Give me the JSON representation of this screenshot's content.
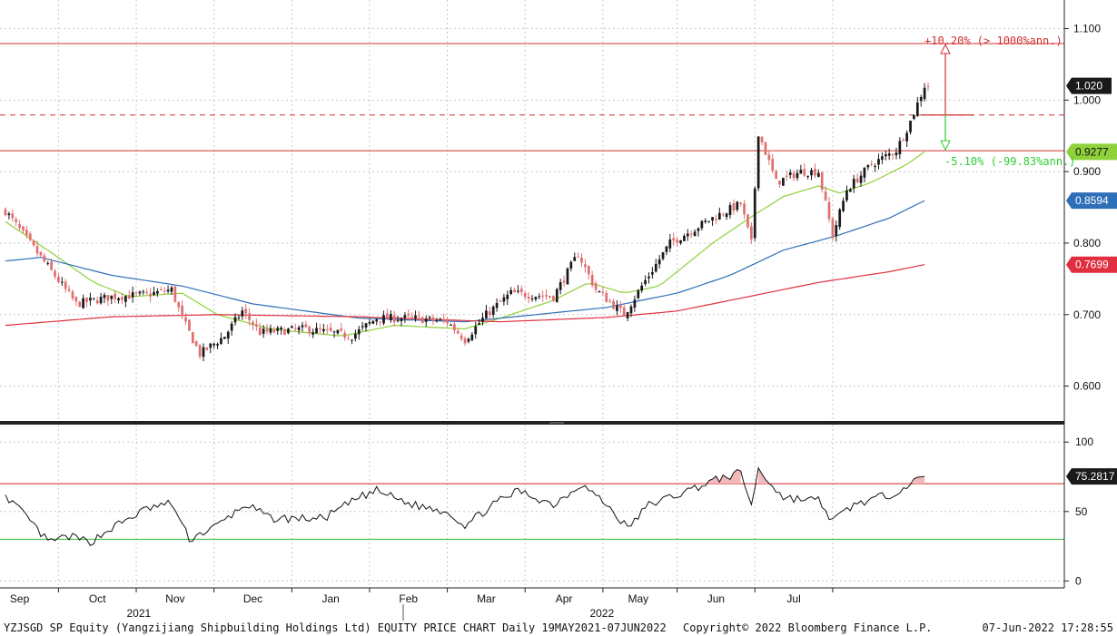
{
  "footer": {
    "left": "YZJSGD SP Equity (Yangzijiang Shipbuilding Holdings Ltd) EQUITY PRICE CHART  Daily 19MAY2021-07JUN2022",
    "center": "Copyright© 2022 Bloomberg Finance L.P.",
    "right": "07-Jun-2022 17:28:55"
  },
  "colors": {
    "up": "#1a1a1a",
    "down": "#e07070",
    "ma_short": "#8fd13a",
    "ma_mid": "#2f6fb8",
    "ma_long": "#e03040",
    "level_line": "#d03030",
    "rsi_line": "#111111",
    "rsi_upper": "#cc2020",
    "rsi_lower": "#33bb33",
    "grid": "#c8c8c8"
  },
  "chart_data": [
    {
      "type": "candlestick",
      "ylim": [
        0.55,
        1.14
      ],
      "y_ticks": [
        "1.100",
        "1.000",
        "0.900",
        "0.800",
        "0.700",
        "0.600"
      ],
      "x_ticks": [
        "Sep",
        "Oct",
        "Nov",
        "Dec",
        "Jan",
        "Feb",
        "Mar",
        "Apr",
        "May",
        "Jun",
        "Jul"
      ],
      "year_labels": [
        "2021",
        "2022"
      ],
      "grid": true,
      "bars_anchor": [
        {
          "index": 0,
          "close": 0.845
        },
        {
          "index": 10,
          "close": 0.78
        },
        {
          "index": 20,
          "close": 0.715
        },
        {
          "index": 30,
          "close": 0.725
        },
        {
          "index": 40,
          "close": 0.728
        },
        {
          "index": 47,
          "close": 0.735
        },
        {
          "index": 50,
          "close": 0.695
        },
        {
          "index": 55,
          "close": 0.645
        },
        {
          "index": 62,
          "close": 0.67
        },
        {
          "index": 67,
          "close": 0.705
        },
        {
          "index": 72,
          "close": 0.675
        },
        {
          "index": 85,
          "close": 0.68
        },
        {
          "index": 98,
          "close": 0.67
        },
        {
          "index": 105,
          "close": 0.695
        },
        {
          "index": 115,
          "close": 0.695
        },
        {
          "index": 125,
          "close": 0.69
        },
        {
          "index": 130,
          "close": 0.665
        },
        {
          "index": 136,
          "close": 0.7
        },
        {
          "index": 143,
          "close": 0.73
        },
        {
          "index": 155,
          "close": 0.725
        },
        {
          "index": 162,
          "close": 0.785
        },
        {
          "index": 167,
          "close": 0.735
        },
        {
          "index": 175,
          "close": 0.7
        },
        {
          "index": 180,
          "close": 0.74
        },
        {
          "index": 188,
          "close": 0.8
        },
        {
          "index": 200,
          "close": 0.835
        },
        {
          "index": 208,
          "close": 0.855
        },
        {
          "index": 211,
          "close": 0.8
        },
        {
          "index": 213,
          "close": 0.955
        },
        {
          "index": 218,
          "close": 0.885
        },
        {
          "index": 225,
          "close": 0.9
        },
        {
          "index": 230,
          "close": 0.9
        },
        {
          "index": 234,
          "close": 0.81
        },
        {
          "index": 238,
          "close": 0.875
        },
        {
          "index": 245,
          "close": 0.91
        },
        {
          "index": 252,
          "close": 0.93
        },
        {
          "index": 256,
          "close": 0.97
        },
        {
          "index": 260,
          "close": 1.02
        }
      ],
      "series": [
        {
          "name": "",
          "role": "ma_short",
          "values": [
            {
              "index": 0,
              "value": 0.83
            },
            {
              "index": 12,
              "value": 0.79
            },
            {
              "index": 25,
              "value": 0.745
            },
            {
              "index": 35,
              "value": 0.725
            },
            {
              "index": 50,
              "value": 0.73
            },
            {
              "index": 60,
              "value": 0.7
            },
            {
              "index": 75,
              "value": 0.68
            },
            {
              "index": 95,
              "value": 0.67
            },
            {
              "index": 110,
              "value": 0.685
            },
            {
              "index": 130,
              "value": 0.68
            },
            {
              "index": 140,
              "value": 0.695
            },
            {
              "index": 155,
              "value": 0.72
            },
            {
              "index": 165,
              "value": 0.745
            },
            {
              "index": 175,
              "value": 0.73
            },
            {
              "index": 185,
              "value": 0.74
            },
            {
              "index": 200,
              "value": 0.8
            },
            {
              "index": 212,
              "value": 0.84
            },
            {
              "index": 220,
              "value": 0.865
            },
            {
              "index": 230,
              "value": 0.88
            },
            {
              "index": 236,
              "value": 0.87
            },
            {
              "index": 245,
              "value": 0.885
            },
            {
              "index": 255,
              "value": 0.91
            },
            {
              "index": 260,
              "value": 0.9277
            }
          ]
        },
        {
          "name": "",
          "role": "ma_mid",
          "values": [
            {
              "index": 0,
              "value": 0.775
            },
            {
              "index": 10,
              "value": 0.78
            },
            {
              "index": 30,
              "value": 0.755
            },
            {
              "index": 50,
              "value": 0.74
            },
            {
              "index": 70,
              "value": 0.715
            },
            {
              "index": 100,
              "value": 0.695
            },
            {
              "index": 130,
              "value": 0.69
            },
            {
              "index": 150,
              "value": 0.7
            },
            {
              "index": 170,
              "value": 0.71
            },
            {
              "index": 190,
              "value": 0.73
            },
            {
              "index": 205,
              "value": 0.755
            },
            {
              "index": 220,
              "value": 0.79
            },
            {
              "index": 235,
              "value": 0.81
            },
            {
              "index": 250,
              "value": 0.835
            },
            {
              "index": 260,
              "value": 0.8594
            }
          ]
        },
        {
          "name": "",
          "role": "ma_long",
          "values": [
            {
              "index": 0,
              "value": 0.685
            },
            {
              "index": 30,
              "value": 0.697
            },
            {
              "index": 60,
              "value": 0.7
            },
            {
              "index": 100,
              "value": 0.697
            },
            {
              "index": 140,
              "value": 0.69
            },
            {
              "index": 170,
              "value": 0.696
            },
            {
              "index": 190,
              "value": 0.705
            },
            {
              "index": 210,
              "value": 0.725
            },
            {
              "index": 230,
              "value": 0.745
            },
            {
              "index": 250,
              "value": 0.76
            },
            {
              "index": 260,
              "value": 0.7699
            }
          ]
        }
      ],
      "levels": [
        {
          "value": 1.0791,
          "style": "solid"
        },
        {
          "value": 0.9792,
          "style": "dashed"
        },
        {
          "value": 0.9292,
          "style": "solid"
        }
      ],
      "annotations": [
        {
          "text": "+10.20% (> 1000%ann.)",
          "color": "#d03030"
        },
        {
          "text": "-5.10% (-99.83%ann.)",
          "color": "#33cc33"
        }
      ],
      "price_tags": [
        {
          "value": 1.02,
          "text": "1.020",
          "bg": "#1a1a1a",
          "fg": "#ffffff"
        },
        {
          "value": 0.9277,
          "text": "0.9277",
          "bg": "#8fd13a",
          "fg": "#111111"
        },
        {
          "value": 0.8594,
          "text": "0.8594",
          "bg": "#2f6fb8",
          "fg": "#ffffff"
        },
        {
          "value": 0.7699,
          "text": "0.7699",
          "bg": "#e03040",
          "fg": "#ffffff"
        }
      ]
    },
    {
      "type": "line",
      "ylim": [
        -5,
        108
      ],
      "y_ticks": [
        "100",
        "50",
        "0"
      ],
      "upper": 70,
      "lower": 30,
      "grid": true,
      "series": [
        {
          "name": "",
          "values": [
            {
              "index": 0,
              "value": 62
            },
            {
              "index": 8,
              "value": 40
            },
            {
              "index": 12,
              "value": 28
            },
            {
              "index": 18,
              "value": 32
            },
            {
              "index": 24,
              "value": 28
            },
            {
              "index": 30,
              "value": 38
            },
            {
              "index": 40,
              "value": 52
            },
            {
              "index": 47,
              "value": 56
            },
            {
              "index": 52,
              "value": 30
            },
            {
              "index": 60,
              "value": 40
            },
            {
              "index": 68,
              "value": 55
            },
            {
              "index": 75,
              "value": 45
            },
            {
              "index": 90,
              "value": 45
            },
            {
              "index": 100,
              "value": 60
            },
            {
              "index": 105,
              "value": 65
            },
            {
              "index": 115,
              "value": 55
            },
            {
              "index": 125,
              "value": 50
            },
            {
              "index": 130,
              "value": 40
            },
            {
              "index": 138,
              "value": 55
            },
            {
              "index": 145,
              "value": 65
            },
            {
              "index": 155,
              "value": 55
            },
            {
              "index": 163,
              "value": 70
            },
            {
              "index": 170,
              "value": 55
            },
            {
              "index": 176,
              "value": 38
            },
            {
              "index": 182,
              "value": 55
            },
            {
              "index": 190,
              "value": 62
            },
            {
              "index": 200,
              "value": 72
            },
            {
              "index": 208,
              "value": 78
            },
            {
              "index": 211,
              "value": 55
            },
            {
              "index": 213,
              "value": 80
            },
            {
              "index": 220,
              "value": 60
            },
            {
              "index": 230,
              "value": 58
            },
            {
              "index": 234,
              "value": 43
            },
            {
              "index": 240,
              "value": 55
            },
            {
              "index": 250,
              "value": 62
            },
            {
              "index": 260,
              "value": 75.2817
            }
          ]
        }
      ],
      "price_tags": [
        {
          "value": 75.2817,
          "text": "75.2817",
          "bg": "#1a1a1a",
          "fg": "#ffffff"
        }
      ]
    }
  ]
}
